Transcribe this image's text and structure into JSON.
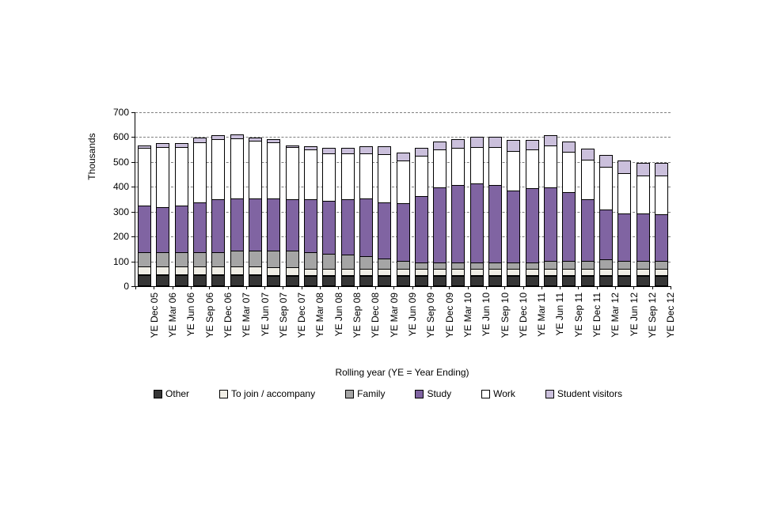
{
  "page": {
    "background": "#ffffff"
  },
  "chart_data": {
    "type": "bar",
    "stacked": true,
    "title": "",
    "xlabel": "Rolling year (YE = Year Ending)",
    "ylabel": "Thousands",
    "ylim": [
      0,
      700
    ],
    "yticks": [
      0,
      100,
      200,
      300,
      400,
      500,
      600,
      700
    ],
    "grid": "horizontal-dashed",
    "legend_position": "bottom",
    "categories": [
      "YE Dec 05",
      "YE Mar 06",
      "YE Jun 06",
      "YE Sep 06",
      "YE Dec 06",
      "YE Mar 07",
      "YE Jun 07",
      "YE Sep 07",
      "YE Dec 07",
      "YE Mar 08",
      "YE Jun 08",
      "YE Sep 08",
      "YE Dec 08",
      "YE Mar 09",
      "YE Jun 09",
      "YE Sep 09",
      "YE Dec 09",
      "YE Mar 10",
      "YE Jun 10",
      "YE Sep 10",
      "YE Dec 10",
      "YE Mar 11",
      "YE Jun 11",
      "YE Sep 11",
      "YE Dec 11",
      "YE Mar 12",
      "YE Jun 12",
      "YE Sep 12",
      "YE Dec 12"
    ],
    "series": [
      {
        "name": "Other",
        "color": "#363636",
        "values": [
          45,
          45,
          45,
          45,
          45,
          45,
          45,
          40,
          40,
          40,
          40,
          40,
          40,
          40,
          40,
          40,
          40,
          40,
          40,
          40,
          40,
          40,
          40,
          40,
          40,
          40,
          40,
          40,
          40
        ]
      },
      {
        "name": "To join / accompany",
        "color": "#F0EEE6",
        "values": [
          35,
          35,
          35,
          35,
          35,
          35,
          35,
          35,
          35,
          30,
          30,
          30,
          30,
          30,
          30,
          30,
          30,
          30,
          30,
          30,
          30,
          30,
          30,
          30,
          30,
          30,
          30,
          30,
          30
        ]
      },
      {
        "name": "Family",
        "color": "#A5A5A5",
        "values": [
          60,
          60,
          60,
          60,
          60,
          65,
          65,
          70,
          70,
          70,
          65,
          60,
          55,
          45,
          35,
          30,
          30,
          30,
          30,
          30,
          30,
          30,
          35,
          35,
          35,
          40,
          35,
          35,
          35
        ]
      },
      {
        "name": "Study",
        "color": "#8064A2",
        "values": [
          190,
          185,
          190,
          205,
          215,
          215,
          215,
          215,
          210,
          215,
          215,
          225,
          235,
          230,
          235,
          270,
          305,
          315,
          320,
          315,
          290,
          300,
          300,
          280,
          250,
          205,
          195,
          195,
          190
        ]
      },
      {
        "name": "Work",
        "color": "#FFFFFF",
        "values": [
          235,
          245,
          240,
          245,
          245,
          245,
          235,
          230,
          215,
          205,
          195,
          190,
          185,
          195,
          175,
          165,
          155,
          150,
          150,
          155,
          165,
          160,
          170,
          165,
          165,
          175,
          165,
          155,
          160
        ]
      },
      {
        "name": "Student visitors",
        "color": "#CBC0DC",
        "values": [
          15,
          20,
          20,
          20,
          20,
          20,
          15,
          15,
          10,
          15,
          25,
          25,
          30,
          35,
          35,
          35,
          35,
          40,
          45,
          45,
          45,
          40,
          45,
          45,
          45,
          50,
          55,
          55,
          55
        ]
      }
    ]
  }
}
